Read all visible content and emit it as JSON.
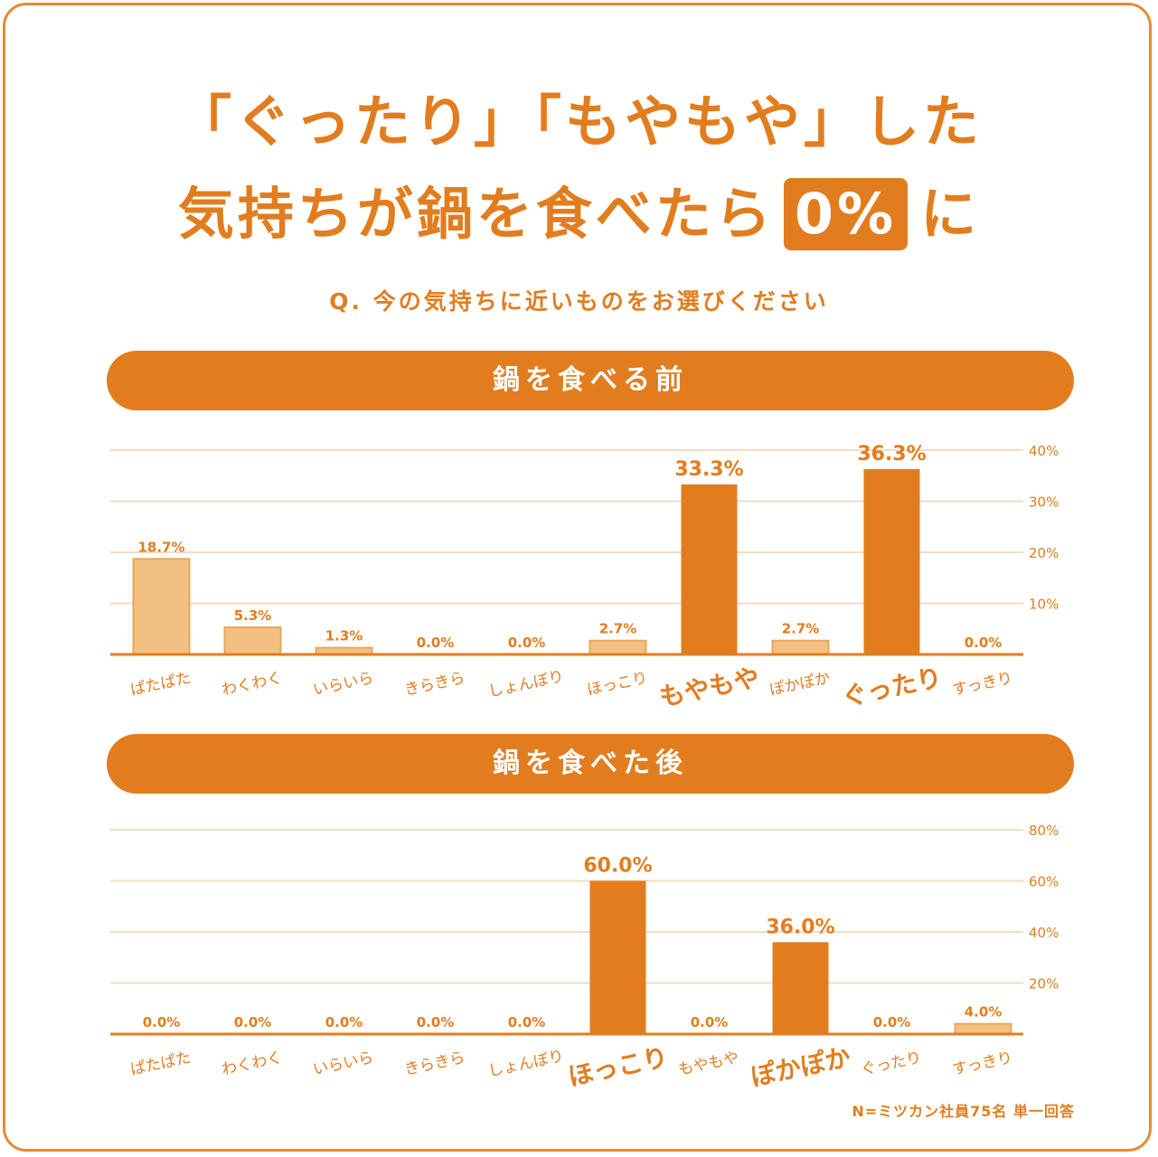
{
  "title_line1": "「ぐったり」「もやもや」した",
  "title_line2_prefix": "気持ちが鍋を食べたら",
  "title_highlight": "0%",
  "title_line2_suffix": "に",
  "question": "Q. 今の気持ちに近いものをお選びください",
  "note": "N=ミツカン社員75名 単一回答",
  "colors": {
    "accent": "#e27d1f",
    "light_bar": "#f2c083",
    "grid": "#f3dcc4"
  },
  "chart_data": [
    {
      "type": "bar",
      "title": "鍋を食べる前",
      "categories": [
        "ぱたぱた",
        "わくわく",
        "いらいら",
        "きらきら",
        "しょんぼり",
        "ほっこり",
        "もやもや",
        "ぽかぽか",
        "ぐったり",
        "すっきり"
      ],
      "values": [
        18.7,
        5.3,
        1.3,
        0.0,
        0.0,
        2.7,
        33.3,
        2.7,
        36.3,
        0.0
      ],
      "value_labels": [
        "18.7%",
        "5.3%",
        "1.3%",
        "0.0%",
        "0.0%",
        "2.7%",
        "33.3%",
        "2.7%",
        "36.3%",
        "0.0%"
      ],
      "highlight": [
        false,
        false,
        false,
        false,
        false,
        false,
        true,
        false,
        true,
        false
      ],
      "light": [
        true,
        true,
        true,
        false,
        false,
        true,
        false,
        true,
        false,
        false
      ],
      "ylim": [
        0,
        40
      ],
      "yticks": [
        10,
        20,
        30,
        40
      ],
      "ytick_labels": [
        "10%",
        "20%",
        "30%",
        "40%"
      ],
      "grid": true
    },
    {
      "type": "bar",
      "title": "鍋を食べた後",
      "categories": [
        "ぱたぱた",
        "わくわく",
        "いらいら",
        "きらきら",
        "しょんぼり",
        "ほっこり",
        "もやもや",
        "ぽかぽか",
        "ぐったり",
        "すっきり"
      ],
      "values": [
        0.0,
        0.0,
        0.0,
        0.0,
        0.0,
        60.0,
        0.0,
        36.0,
        0.0,
        4.0
      ],
      "value_labels": [
        "0.0%",
        "0.0%",
        "0.0%",
        "0.0%",
        "0.0%",
        "60.0%",
        "0.0%",
        "36.0%",
        "0.0%",
        "4.0%"
      ],
      "highlight": [
        false,
        false,
        false,
        false,
        false,
        true,
        false,
        true,
        false,
        false
      ],
      "light": [
        false,
        false,
        false,
        false,
        false,
        false,
        false,
        false,
        false,
        true
      ],
      "ylim": [
        0,
        80
      ],
      "yticks": [
        20,
        40,
        60,
        80
      ],
      "ytick_labels": [
        "20%",
        "40%",
        "60%",
        "80%"
      ],
      "grid": true
    }
  ]
}
